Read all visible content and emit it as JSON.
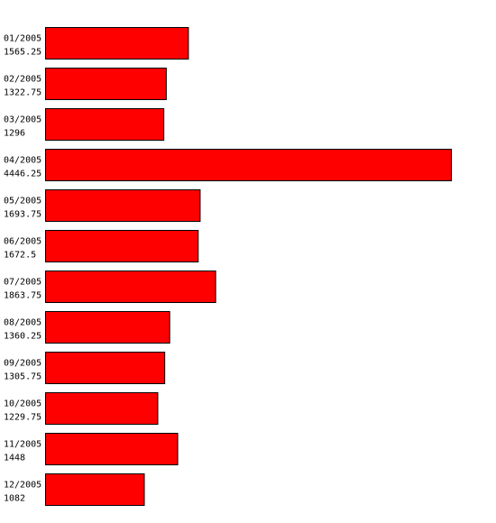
{
  "chart_data": {
    "type": "bar",
    "orientation": "horizontal",
    "color": "#ff0000",
    "categories": [
      "01/2005",
      "02/2005",
      "03/2005",
      "04/2005",
      "05/2005",
      "06/2005",
      "07/2005",
      "08/2005",
      "09/2005",
      "10/2005",
      "11/2005",
      "12/2005"
    ],
    "values": [
      1565.25,
      1322.75,
      1296,
      4446.25,
      1693.75,
      1672.5,
      1863.75,
      1360.25,
      1305.75,
      1229.75,
      1448,
      1082
    ]
  }
}
